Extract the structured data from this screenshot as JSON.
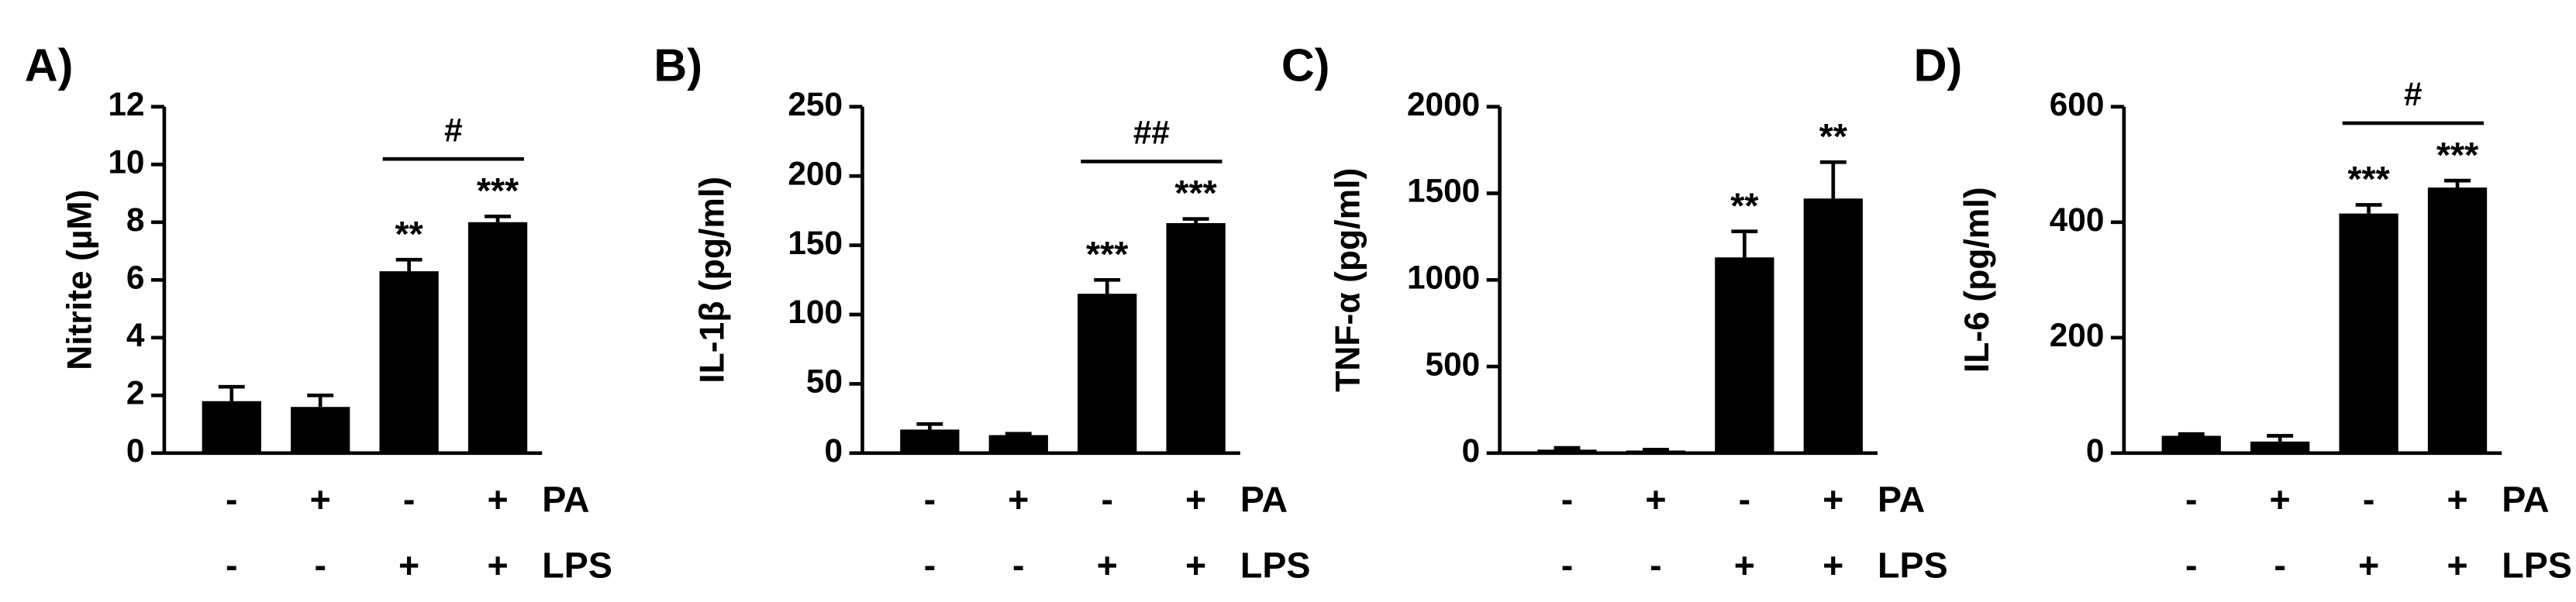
{
  "chart_data": [
    {
      "type": "bar",
      "panel_label": "A)",
      "y_label": "Nitrite (µM)",
      "color": "#000000",
      "values": [
        1.8,
        1.6,
        6.3,
        8.0
      ],
      "errors": [
        0.5,
        0.4,
        0.4,
        0.2
      ],
      "significance": [
        null,
        null,
        "**",
        "***"
      ],
      "comparison": "#",
      "ylim": [
        0,
        12
      ],
      "yticks": [
        0,
        2,
        4,
        6,
        8,
        10,
        12
      ],
      "treatments": [
        {
          "name": "PA",
          "signs": [
            "-",
            "+",
            "-",
            "+"
          ]
        },
        {
          "name": "LPS",
          "signs": [
            "-",
            "-",
            "+",
            "+"
          ]
        }
      ]
    },
    {
      "type": "bar",
      "panel_label": "B)",
      "y_label": "IL-1β (pg/ml)",
      "color": "#000000",
      "values": [
        17,
        13,
        115,
        166
      ],
      "errors": [
        4,
        1,
        10,
        3
      ],
      "significance": [
        null,
        null,
        "***",
        "***"
      ],
      "comparison": "##",
      "ylim": [
        0,
        250
      ],
      "yticks": [
        0,
        50,
        100,
        150,
        200,
        250
      ],
      "treatments": [
        {
          "name": "PA",
          "signs": [
            "-",
            "+",
            "-",
            "+"
          ]
        },
        {
          "name": "LPS",
          "signs": [
            "-",
            "-",
            "+",
            "+"
          ]
        }
      ]
    },
    {
      "type": "bar",
      "panel_label": "C)",
      "y_label": "TNF-α (pg/ml)",
      "color": "#000000",
      "values": [
        20,
        15,
        1130,
        1470
      ],
      "errors": [
        10,
        5,
        150,
        210
      ],
      "significance": [
        null,
        null,
        "**",
        "**"
      ],
      "ylim": [
        0,
        2000
      ],
      "yticks": [
        0,
        500,
        1000,
        1500,
        2000
      ],
      "treatments": [
        {
          "name": "PA",
          "signs": [
            "-",
            "+",
            "-",
            "+"
          ]
        },
        {
          "name": "LPS",
          "signs": [
            "-",
            "-",
            "+",
            "+"
          ]
        }
      ]
    },
    {
      "type": "bar",
      "panel_label": "D)",
      "y_label": "IL-6 (pg/ml)",
      "color": "#000000",
      "values": [
        30,
        20,
        415,
        460
      ],
      "errors": [
        3,
        10,
        15,
        12
      ],
      "significance": [
        null,
        null,
        "***",
        "***"
      ],
      "comparison": "#",
      "ylim": [
        0,
        600
      ],
      "yticks": [
        0,
        200,
        400,
        600
      ],
      "treatments": [
        {
          "name": "PA",
          "signs": [
            "-",
            "+",
            "-",
            "+"
          ]
        },
        {
          "name": "LPS",
          "signs": [
            "-",
            "-",
            "+",
            "+"
          ]
        }
      ]
    }
  ]
}
